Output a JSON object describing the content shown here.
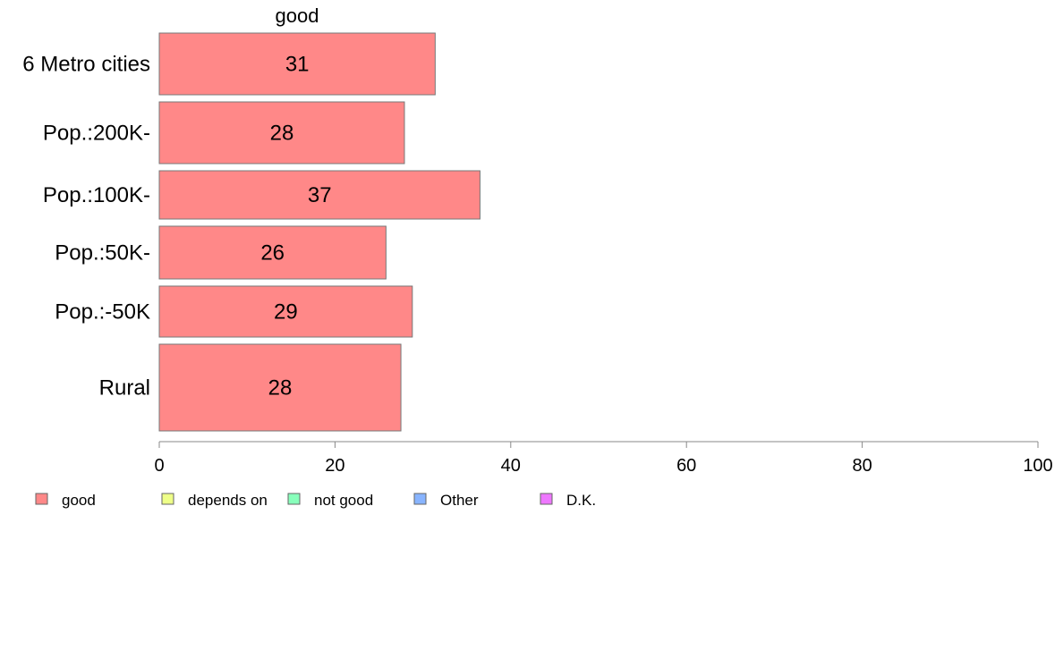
{
  "chart_data": {
    "type": "bar",
    "orientation": "horizontal",
    "title": "good",
    "categories": [
      "6 Metro cities",
      "Pop.:200K-",
      "Pop.:100K-",
      "Pop.:50K-",
      "Pop.:-50K",
      "Rural"
    ],
    "series": [
      {
        "name": "good",
        "values": [
          31.4,
          27.9,
          36.5,
          25.8,
          28.8,
          27.5
        ],
        "labels": [
          "31",
          "28",
          "37",
          "26",
          "29",
          "28"
        ]
      }
    ],
    "xlim": [
      0,
      100
    ],
    "xticks": [
      "0",
      "20",
      "40",
      "60",
      "80",
      "100"
    ],
    "xlabel": "",
    "ylabel": "",
    "grid": false,
    "legend": {
      "placement": "bottom-left",
      "items": [
        {
          "label": "good",
          "color": "#ff8888"
        },
        {
          "label": "depends on",
          "color": "#eeff88"
        },
        {
          "label": "not good",
          "color": "#88ffbb"
        },
        {
          "label": "Other",
          "color": "#88b4ff"
        },
        {
          "label": "D.K.",
          "color": "#ee77ff"
        }
      ]
    },
    "bar_color": "#ff8888",
    "bar_stroke": "#777777"
  }
}
